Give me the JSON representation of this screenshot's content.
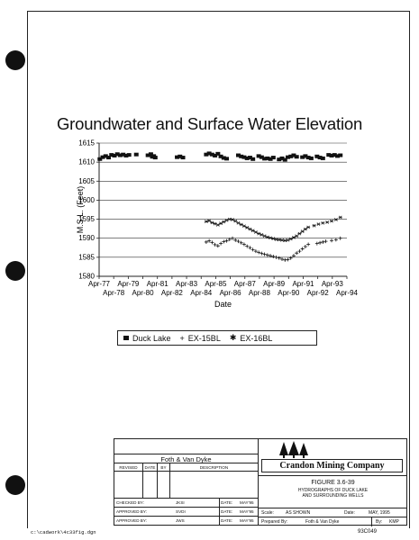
{
  "chart_data": {
    "type": "scatter",
    "title": "Groundwater and Surface Water Elevation",
    "xlabel": "Date",
    "ylabel": "M.S.L. (Feet)",
    "ylim": [
      1580,
      1615
    ],
    "yticks": [
      1615,
      1610,
      1605,
      1600,
      1595,
      1590,
      1585,
      1580
    ],
    "xlim": [
      1977.25,
      1994.25
    ],
    "xticks": [
      {
        "x": 1977.25,
        "label": "Apr-77",
        "row": 1
      },
      {
        "x": 1978.25,
        "label": "Apr-78",
        "row": 2
      },
      {
        "x": 1979.25,
        "label": "Apr-79",
        "row": 1
      },
      {
        "x": 1980.25,
        "label": "Apr-80",
        "row": 2
      },
      {
        "x": 1981.25,
        "label": "Apr-81",
        "row": 1
      },
      {
        "x": 1982.25,
        "label": "Apr-82",
        "row": 2
      },
      {
        "x": 1983.25,
        "label": "Apr-83",
        "row": 1
      },
      {
        "x": 1984.25,
        "label": "Apr-84",
        "row": 2
      },
      {
        "x": 1985.25,
        "label": "Apr-85",
        "row": 1
      },
      {
        "x": 1986.25,
        "label": "Apr-86",
        "row": 2
      },
      {
        "x": 1987.25,
        "label": "Apr-87",
        "row": 1
      },
      {
        "x": 1988.25,
        "label": "Apr-88",
        "row": 2
      },
      {
        "x": 1989.25,
        "label": "Apr-89",
        "row": 1
      },
      {
        "x": 1990.25,
        "label": "Apr-90",
        "row": 2
      },
      {
        "x": 1991.25,
        "label": "Apr-91",
        "row": 1
      },
      {
        "x": 1992.25,
        "label": "Apr-92",
        "row": 2
      },
      {
        "x": 1993.25,
        "label": "Apr-93",
        "row": 1
      },
      {
        "x": 1994.25,
        "label": "Apr-94",
        "row": 2
      }
    ],
    "grid": true,
    "legend_position": "bottom",
    "series": [
      {
        "name": "Duck Lake",
        "marker": "square",
        "points": [
          [
            1977.3,
            1610.8
          ],
          [
            1977.5,
            1611.3
          ],
          [
            1977.7,
            1611.6
          ],
          [
            1977.9,
            1611.2
          ],
          [
            1978.1,
            1611.9
          ],
          [
            1978.3,
            1611.7
          ],
          [
            1978.5,
            1612.1
          ],
          [
            1978.7,
            1611.8
          ],
          [
            1978.9,
            1612.0
          ],
          [
            1979.1,
            1611.7
          ],
          [
            1979.3,
            1611.9
          ],
          [
            1979.8,
            1612.0
          ],
          [
            1980.6,
            1611.8
          ],
          [
            1980.8,
            1612.1
          ],
          [
            1980.9,
            1611.4
          ],
          [
            1981.0,
            1611.6
          ],
          [
            1981.1,
            1611.2
          ],
          [
            1982.6,
            1611.3
          ],
          [
            1982.8,
            1611.5
          ],
          [
            1983.0,
            1611.2
          ],
          [
            1984.6,
            1612.0
          ],
          [
            1984.8,
            1612.3
          ],
          [
            1985.0,
            1612.0
          ],
          [
            1985.2,
            1611.7
          ],
          [
            1985.4,
            1612.2
          ],
          [
            1985.6,
            1611.5
          ],
          [
            1985.8,
            1611.1
          ],
          [
            1986.0,
            1610.9
          ],
          [
            1986.8,
            1611.8
          ],
          [
            1987.0,
            1611.5
          ],
          [
            1987.2,
            1611.3
          ],
          [
            1987.4,
            1611.0
          ],
          [
            1987.6,
            1611.2
          ],
          [
            1987.8,
            1610.8
          ],
          [
            1988.2,
            1611.6
          ],
          [
            1988.4,
            1611.3
          ],
          [
            1988.6,
            1610.9
          ],
          [
            1988.8,
            1611.0
          ],
          [
            1989.0,
            1610.8
          ],
          [
            1989.2,
            1611.2
          ],
          [
            1989.6,
            1610.7
          ],
          [
            1989.8,
            1611.0
          ],
          [
            1990.0,
            1610.6
          ],
          [
            1990.2,
            1611.3
          ],
          [
            1990.4,
            1611.5
          ],
          [
            1990.6,
            1611.8
          ],
          [
            1990.8,
            1611.4
          ],
          [
            1991.2,
            1611.3
          ],
          [
            1991.4,
            1611.6
          ],
          [
            1991.6,
            1611.2
          ],
          [
            1991.8,
            1611.0
          ],
          [
            1992.2,
            1611.5
          ],
          [
            1992.4,
            1611.2
          ],
          [
            1992.6,
            1611.0
          ],
          [
            1993.0,
            1611.9
          ],
          [
            1993.2,
            1611.7
          ],
          [
            1993.4,
            1611.9
          ],
          [
            1993.6,
            1611.6
          ],
          [
            1993.8,
            1611.8
          ]
        ]
      },
      {
        "name": "EX-15BL",
        "marker": "plus",
        "points": [
          [
            1984.6,
            1589.0
          ],
          [
            1984.8,
            1589.3
          ],
          [
            1985.0,
            1588.9
          ],
          [
            1985.2,
            1588.3
          ],
          [
            1985.4,
            1588.0
          ],
          [
            1985.6,
            1588.6
          ],
          [
            1985.8,
            1589.1
          ],
          [
            1986.0,
            1589.3
          ],
          [
            1986.2,
            1589.7
          ],
          [
            1986.4,
            1590.0
          ],
          [
            1986.6,
            1589.5
          ],
          [
            1986.8,
            1589.2
          ],
          [
            1987.0,
            1588.8
          ],
          [
            1987.2,
            1588.4
          ],
          [
            1987.4,
            1587.9
          ],
          [
            1987.6,
            1587.5
          ],
          [
            1987.8,
            1587.0
          ],
          [
            1988.0,
            1586.6
          ],
          [
            1988.2,
            1586.3
          ],
          [
            1988.4,
            1586.0
          ],
          [
            1988.6,
            1585.8
          ],
          [
            1988.8,
            1585.6
          ],
          [
            1989.0,
            1585.4
          ],
          [
            1989.2,
            1585.2
          ],
          [
            1989.4,
            1585.0
          ],
          [
            1989.6,
            1584.8
          ],
          [
            1989.8,
            1584.5
          ],
          [
            1990.0,
            1584.3
          ],
          [
            1990.2,
            1584.4
          ],
          [
            1990.4,
            1584.8
          ],
          [
            1990.6,
            1585.4
          ],
          [
            1990.8,
            1586.1
          ],
          [
            1991.0,
            1586.6
          ],
          [
            1991.2,
            1587.2
          ],
          [
            1991.4,
            1587.8
          ],
          [
            1991.6,
            1588.4
          ],
          [
            1992.2,
            1588.6
          ],
          [
            1992.4,
            1588.8
          ],
          [
            1992.6,
            1589.0
          ],
          [
            1992.8,
            1589.2
          ],
          [
            1993.2,
            1589.4
          ],
          [
            1993.5,
            1589.6
          ],
          [
            1993.8,
            1590.0
          ]
        ]
      },
      {
        "name": "EX-16BL",
        "marker": "star",
        "points": [
          [
            1984.6,
            1594.4
          ],
          [
            1984.8,
            1594.6
          ],
          [
            1985.0,
            1594.1
          ],
          [
            1985.2,
            1593.8
          ],
          [
            1985.4,
            1593.5
          ],
          [
            1985.6,
            1593.9
          ],
          [
            1985.8,
            1594.3
          ],
          [
            1986.0,
            1594.7
          ],
          [
            1986.2,
            1595.0
          ],
          [
            1986.4,
            1594.9
          ],
          [
            1986.6,
            1594.5
          ],
          [
            1986.8,
            1594.0
          ],
          [
            1987.0,
            1593.6
          ],
          [
            1987.2,
            1593.2
          ],
          [
            1987.4,
            1592.8
          ],
          [
            1987.6,
            1592.4
          ],
          [
            1987.8,
            1592.0
          ],
          [
            1988.0,
            1591.6
          ],
          [
            1988.2,
            1591.2
          ],
          [
            1988.4,
            1590.9
          ],
          [
            1988.6,
            1590.6
          ],
          [
            1988.8,
            1590.3
          ],
          [
            1989.0,
            1590.1
          ],
          [
            1989.2,
            1589.9
          ],
          [
            1989.4,
            1589.7
          ],
          [
            1989.6,
            1589.6
          ],
          [
            1989.8,
            1589.5
          ],
          [
            1990.0,
            1589.4
          ],
          [
            1990.2,
            1589.5
          ],
          [
            1990.4,
            1589.8
          ],
          [
            1990.6,
            1590.2
          ],
          [
            1990.8,
            1590.6
          ],
          [
            1991.0,
            1591.2
          ],
          [
            1991.2,
            1591.8
          ],
          [
            1991.4,
            1592.4
          ],
          [
            1991.6,
            1592.9
          ],
          [
            1992.0,
            1593.3
          ],
          [
            1992.3,
            1593.7
          ],
          [
            1992.6,
            1594.0
          ],
          [
            1992.9,
            1594.2
          ],
          [
            1993.2,
            1594.5
          ],
          [
            1993.5,
            1594.9
          ],
          [
            1993.8,
            1595.5
          ]
        ]
      }
    ]
  },
  "title_block": {
    "company_header": "Foth & Van Dyke",
    "col_revised": "REVISED",
    "col_date": "DATE",
    "col_by": "BY",
    "col_description": "DESCRIPTION",
    "company_name": "Crandon Mining Company",
    "figure_number": "FIGURE 3.6-39",
    "figure_title_line1": "HYDROGRAPHS OF DUCK LAKE",
    "figure_title_line2": "AND SURROUNDING WELLS",
    "checked_by_label": "CHECKED BY:",
    "checked_by": "JKSI",
    "checked_date_label": "DATE:",
    "checked_date": "MAY'95",
    "approved1_label": "APPROVED BY:",
    "approved1": "SVDI",
    "approved1_date_label": "DATE:",
    "approved1_date": "MAY'95",
    "approved2_label": "APPROVED BY:",
    "approved2": "JWS",
    "approved2_date_label": "DATE:",
    "approved2_date": "MAY'95",
    "scale_label": "Scale:",
    "scale_value": "AS SHOWN",
    "date_label": "Date:",
    "date_value": "MAY, 1995",
    "prepared_label": "Prepared By:",
    "prepared_value": "Foth & Van Dyke",
    "by_label": "By:",
    "by_value": "KMP"
  },
  "footer": {
    "file_path": "c:\\cadwork\\4c33fig.dgn",
    "doc_number": "93C049"
  }
}
